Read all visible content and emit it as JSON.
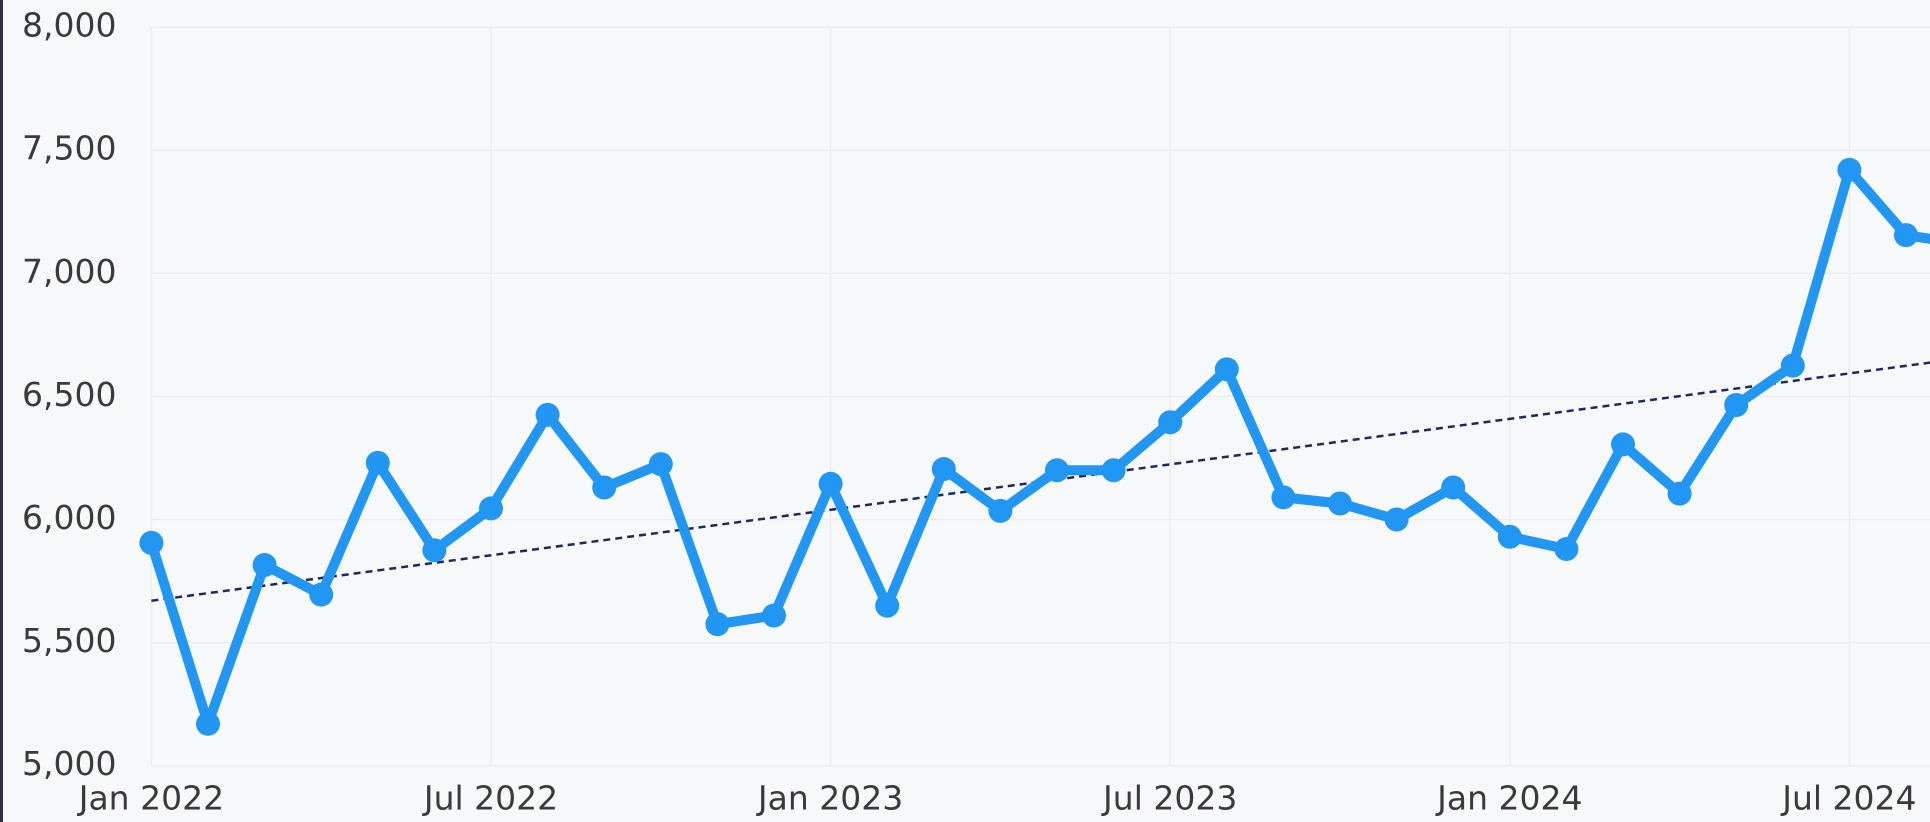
{
  "chart_data": {
    "type": "line",
    "x": [
      "2022-01",
      "2022-02",
      "2022-03",
      "2022-04",
      "2022-05",
      "2022-06",
      "2022-07",
      "2022-08",
      "2022-09",
      "2022-10",
      "2022-11",
      "2022-12",
      "2023-01",
      "2023-02",
      "2023-03",
      "2023-04",
      "2023-05",
      "2023-06",
      "2023-07",
      "2023-08",
      "2023-09",
      "2023-10",
      "2023-11",
      "2023-12",
      "2024-01",
      "2024-02",
      "2024-03",
      "2024-04",
      "2024-05",
      "2024-06",
      "2024-07",
      "2024-08",
      "2024-09"
    ],
    "series": [
      {
        "color": "#2196f3",
        "values": [
          5905,
          5170,
          5815,
          5695,
          6230,
          5875,
          6045,
          6425,
          6130,
          6225,
          5575,
          5610,
          6145,
          5650,
          6205,
          6035,
          6200,
          6200,
          6395,
          6610,
          6090,
          6065,
          6000,
          6130,
          5930,
          5880,
          6305,
          6105,
          6465,
          6625,
          7420,
          7155,
          7120
        ]
      }
    ],
    "trend": {
      "color": "#1f2a5c",
      "x": [
        "2022-01",
        "2024-09"
      ],
      "values": [
        5670,
        6655
      ]
    },
    "xticks": [
      {
        "value": "2022-01",
        "label": "Jan 2022"
      },
      {
        "value": "2022-07",
        "label": "Jul 2022"
      },
      {
        "value": "2023-01",
        "label": "Jan 2023"
      },
      {
        "value": "2023-07",
        "label": "Jul 2023"
      },
      {
        "value": "2024-01",
        "label": "Jan 2024"
      },
      {
        "value": "2024-07",
        "label": "Jul 2024"
      }
    ],
    "ylim": [
      5000,
      8000
    ],
    "yticks": [
      {
        "value": 5000,
        "label": "5,000"
      },
      {
        "value": 5500,
        "label": "5,500"
      },
      {
        "value": 6000,
        "label": "6,000"
      },
      {
        "value": 6500,
        "label": "6,500"
      },
      {
        "value": 7000,
        "label": "7,000"
      },
      {
        "value": 7500,
        "label": "7,500"
      },
      {
        "value": 8000,
        "label": "8,000"
      }
    ],
    "grid": true
  }
}
